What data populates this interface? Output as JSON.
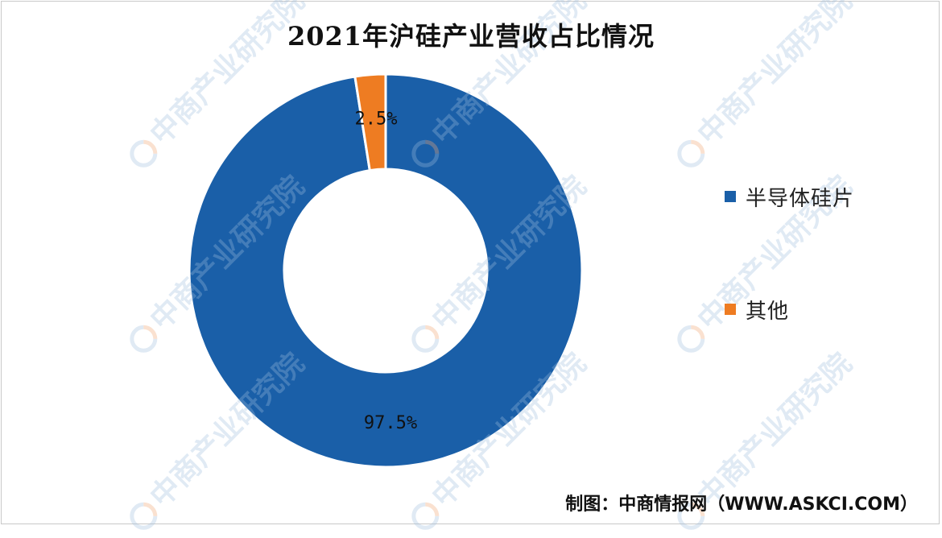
{
  "chart_data": {
    "type": "pie",
    "variant": "donut",
    "title": "2021年沪硅产业营收占比情况",
    "categories": [
      "半导体硅片",
      "其他"
    ],
    "values": [
      97.5,
      2.5
    ],
    "data_labels": [
      "97.5%",
      "2.5%"
    ],
    "colors": [
      "#1a5fa8",
      "#ee7c22"
    ],
    "legend_position": "right",
    "unit": "%"
  },
  "source": "制图：中商情报网（WWW.ASKCI.COM）",
  "watermark": "中商产业研究院"
}
